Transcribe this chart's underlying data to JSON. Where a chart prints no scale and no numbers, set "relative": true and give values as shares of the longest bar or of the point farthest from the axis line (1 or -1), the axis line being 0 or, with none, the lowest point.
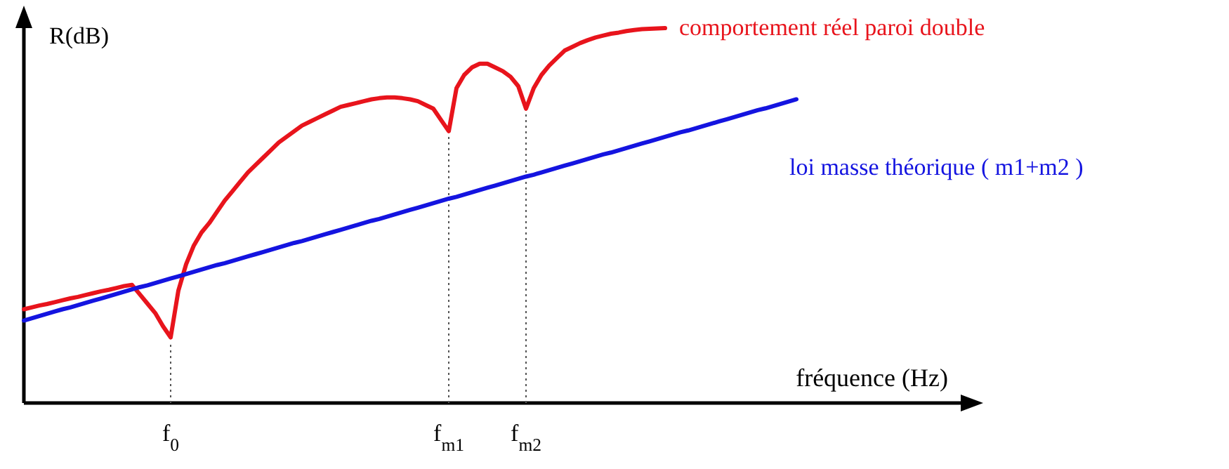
{
  "chart_data": {
    "type": "line",
    "relative": true,
    "xlabel": "fréquence (Hz)",
    "ylabel": "R(dB)",
    "legend": false,
    "line_style": "solid",
    "marker": "none",
    "categories": [
      null,
      null,
      null,
      null,
      null,
      null,
      null,
      null,
      null,
      null,
      null,
      null,
      null,
      null,
      null,
      null,
      null,
      null,
      null,
      "f$_{0}$",
      null,
      null,
      null,
      null,
      null,
      null,
      null,
      null,
      null,
      null,
      null,
      null,
      null,
      null,
      null,
      null,
      null,
      null,
      null,
      null,
      null,
      null,
      null,
      null,
      null,
      null,
      null,
      null,
      null,
      null,
      null,
      null,
      null,
      null,
      null,
      "f$_{m1}$",
      null,
      null,
      null,
      null,
      null,
      null,
      null,
      null,
      null,
      "f$_{m2}$",
      null,
      null,
      null,
      null,
      null,
      null,
      null,
      null,
      null,
      null,
      null,
      null,
      null,
      null,
      null,
      null,
      null,
      null,
      null,
      null,
      null,
      null,
      null,
      null,
      null,
      null,
      null,
      null,
      null,
      null,
      null,
      null,
      null,
      null,
      null
    ],
    "ref_lines": [
      {
        "axis": "x",
        "value": "f$_{0}$",
        "color": "#555555",
        "line_style": "dotted"
      },
      {
        "axis": "x",
        "value": "f$_{m1}$",
        "color": "#555555",
        "line_style": "dotted"
      },
      {
        "axis": "x",
        "value": "f$_{m2}$",
        "color": "#555555",
        "line_style": "dotted"
      }
    ],
    "series": [
      {
        "name": "comportement réel paroi double",
        "color": "#e8141c",
        "values": [
          0.25,
          0.255,
          0.26,
          0.264,
          0.269,
          0.274,
          0.279,
          0.283,
          0.288,
          0.293,
          0.298,
          0.302,
          0.307,
          0.312,
          0.315,
          0.29,
          0.265,
          0.24,
          0.205,
          0.175,
          0.3,
          0.37,
          0.42,
          0.455,
          0.48,
          0.51,
          0.54,
          0.565,
          0.59,
          0.615,
          0.635,
          0.655,
          0.675,
          0.695,
          0.71,
          0.725,
          0.74,
          0.75,
          0.76,
          0.77,
          0.78,
          0.79,
          0.795,
          0.8,
          0.805,
          0.81,
          0.813,
          0.815,
          0.815,
          0.813,
          0.81,
          0.805,
          0.795,
          0.785,
          0.755,
          0.725,
          0.84,
          0.875,
          0.895,
          0.905,
          0.905,
          0.895,
          0.885,
          0.87,
          0.845,
          0.785,
          0.84,
          0.875,
          0.9,
          0.92,
          0.94,
          0.95,
          0.96,
          0.968,
          0.975,
          0.98,
          0.985,
          0.988,
          0.992,
          0.995,
          0.997,
          0.998,
          0.999,
          1,
          null,
          null,
          null,
          null,
          null,
          null,
          null,
          null,
          null,
          null,
          null,
          null,
          null,
          null,
          null,
          null,
          null
        ]
      },
      {
        "name": "loi masse théorique ( m1+m2 )",
        "color": "#1414e0",
        "values": [
          0.22,
          0.226,
          0.232,
          0.238,
          0.244,
          0.25,
          0.255,
          0.261,
          0.267,
          0.273,
          0.279,
          0.285,
          0.291,
          0.297,
          0.303,
          0.309,
          0.314,
          0.32,
          0.326,
          0.332,
          0.338,
          0.344,
          0.35,
          0.356,
          0.362,
          0.368,
          0.373,
          0.379,
          0.385,
          0.391,
          0.397,
          0.403,
          0.409,
          0.415,
          0.421,
          0.427,
          0.432,
          0.438,
          0.444,
          0.45,
          0.456,
          0.462,
          0.468,
          0.474,
          0.48,
          0.486,
          0.491,
          0.497,
          0.503,
          0.509,
          0.515,
          0.521,
          0.527,
          0.533,
          0.539,
          0.545,
          0.55,
          0.556,
          0.562,
          0.568,
          0.574,
          0.58,
          0.586,
          0.592,
          0.598,
          0.604,
          0.609,
          0.615,
          0.621,
          0.627,
          0.633,
          0.639,
          0.645,
          0.651,
          0.657,
          0.663,
          0.668,
          0.674,
          0.68,
          0.686,
          0.692,
          0.698,
          0.704,
          0.71,
          0.716,
          0.722,
          0.727,
          0.733,
          0.739,
          0.745,
          0.751,
          0.757,
          0.763,
          0.769,
          0.775,
          0.781,
          0.786,
          0.792,
          0.798,
          0.804,
          0.81
        ]
      }
    ]
  }
}
